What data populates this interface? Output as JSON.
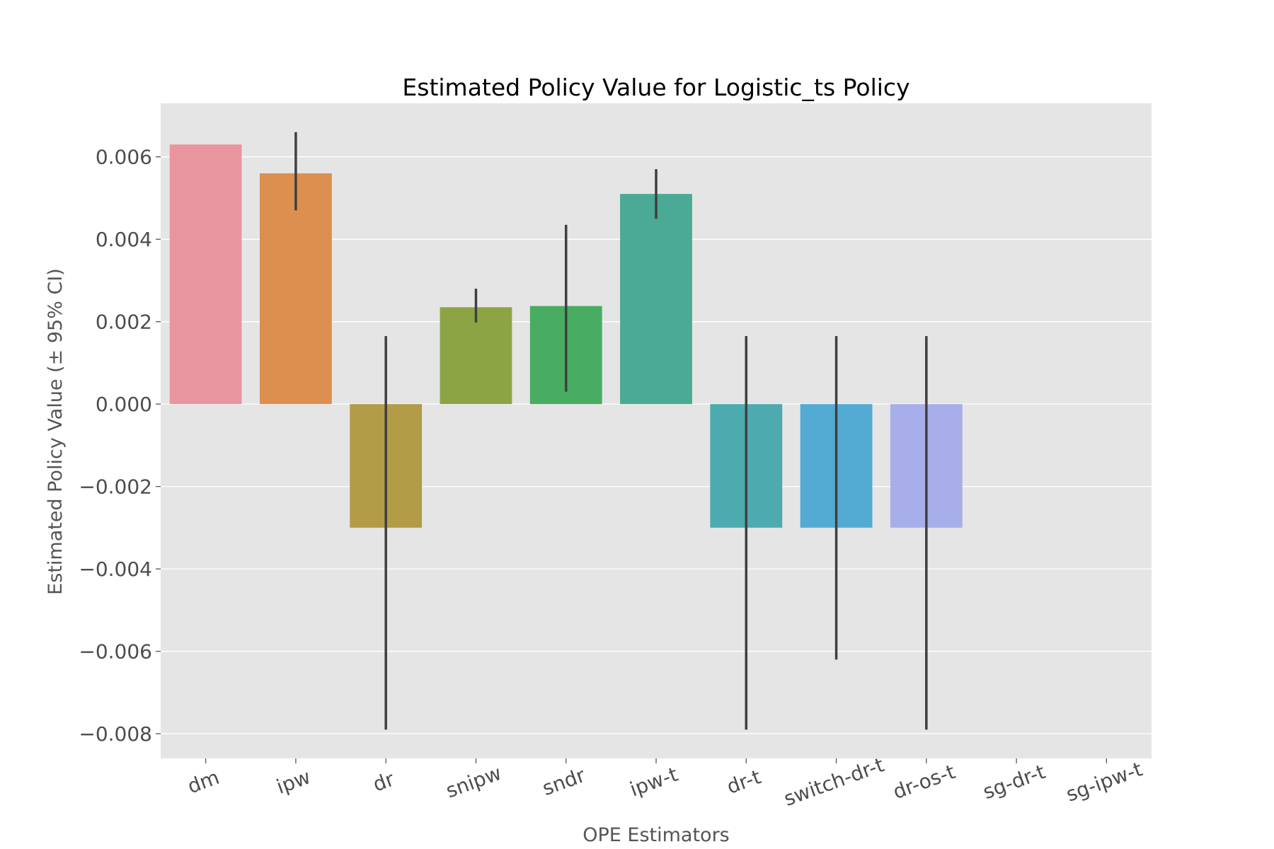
{
  "chart_data": {
    "type": "bar",
    "title": "Estimated Policy Value for Logistic_ts Policy",
    "xlabel": "OPE Estimators",
    "ylabel": "Estimated Policy Value (± 95% CI)",
    "categories": [
      "dm",
      "ipw",
      "dr",
      "snipw",
      "sndr",
      "ipw-t",
      "dr-t",
      "switch-dr-t",
      "dr-os-t",
      "sg-dr-t",
      "sg-ipw-t"
    ],
    "values": [
      0.0063,
      0.0056,
      -0.003,
      0.00235,
      0.00238,
      0.0051,
      -0.003,
      -0.003,
      -0.003,
      null,
      null
    ],
    "ci_low": [
      null,
      0.0047,
      -0.0079,
      0.00198,
      0.0003,
      0.0045,
      -0.0079,
      -0.0062,
      -0.0079,
      null,
      null
    ],
    "ci_high": [
      null,
      0.0066,
      0.00165,
      0.0028,
      0.00435,
      0.0057,
      0.00165,
      0.00165,
      0.00165,
      null,
      null
    ],
    "colors": [
      "#e8959f",
      "#dc8f4e",
      "#b29c47",
      "#8da444",
      "#48ad63",
      "#4aaa96",
      "#4dabb0",
      "#53abd4",
      "#a7aeea",
      "#d592e6",
      "#e691c4"
    ],
    "ylim": [
      -0.0086,
      0.0073
    ],
    "yticks": [
      0.006,
      0.004,
      0.002,
      0.0,
      -0.002,
      -0.004,
      -0.006,
      -0.008
    ],
    "ytick_labels": [
      "0.006",
      "0.004",
      "0.002",
      "0.000",
      "−0.002",
      "−0.004",
      "−0.006",
      "−0.008"
    ],
    "grid": true,
    "background": "#e5e5e5",
    "errorbar_color": "#3f3f3f"
  }
}
